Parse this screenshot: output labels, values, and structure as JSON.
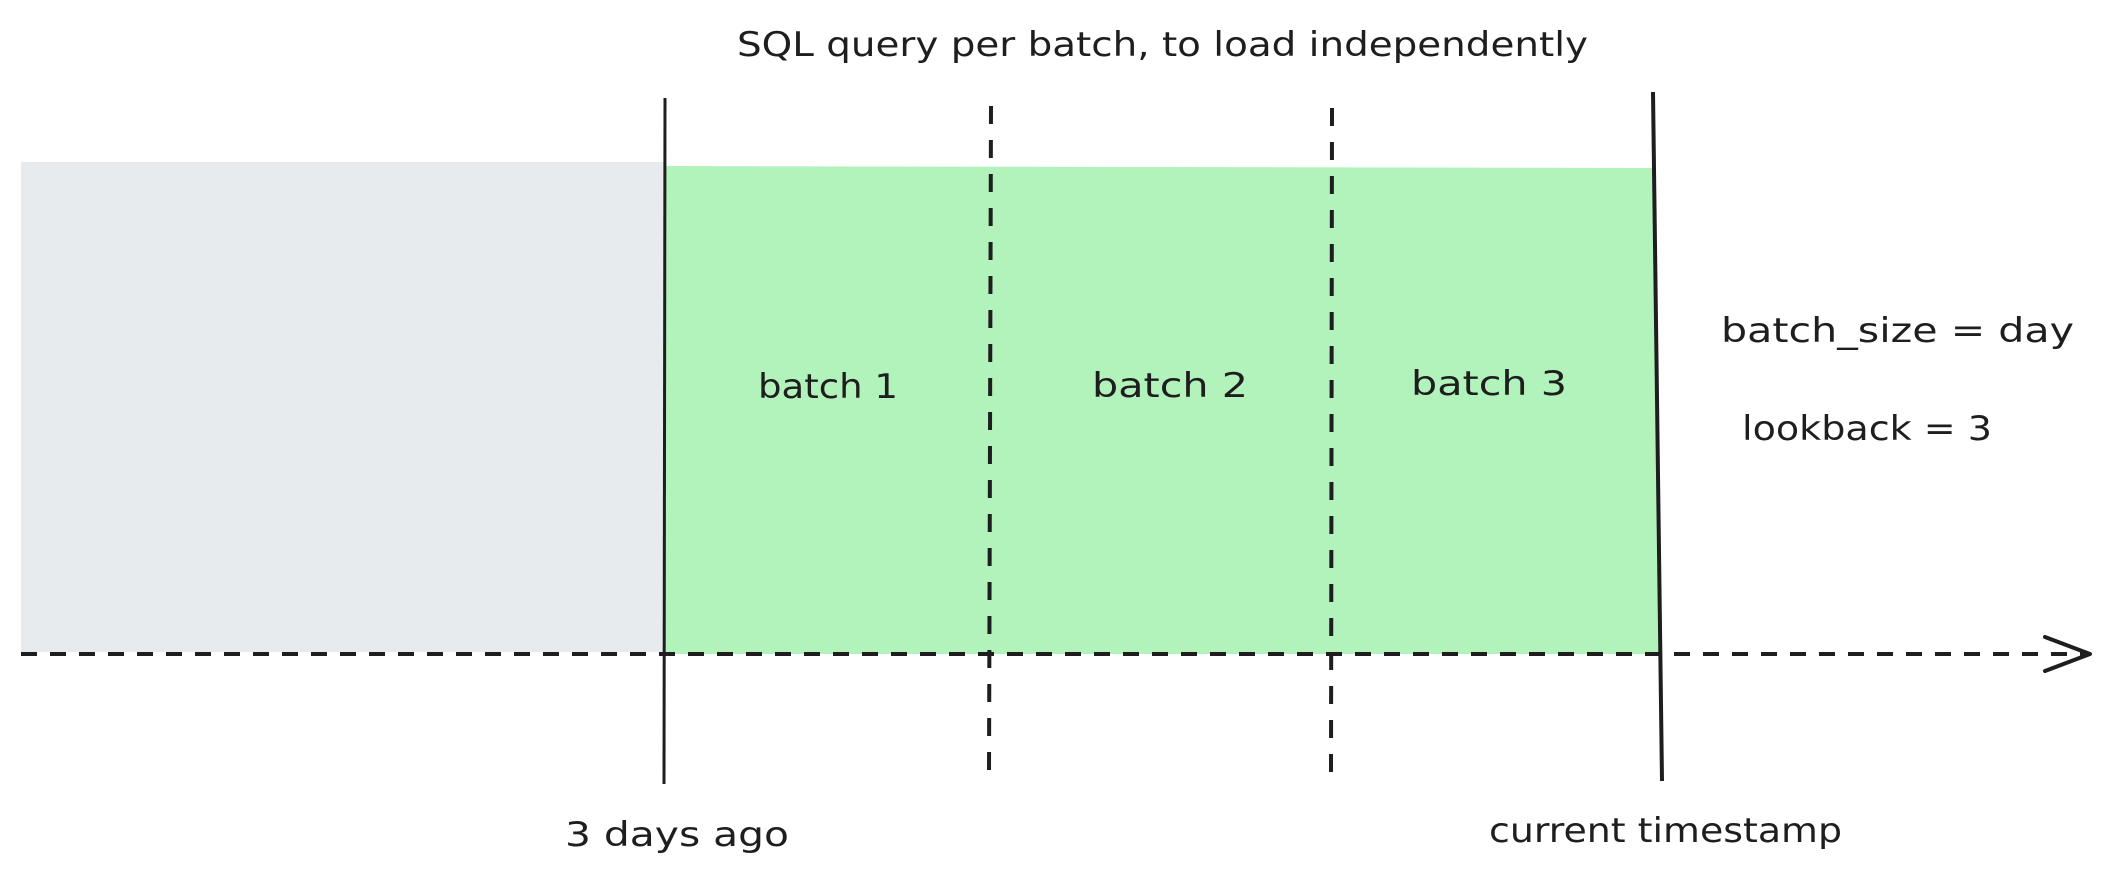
{
  "title": "SQL query per batch, to load independently",
  "batches": [
    "batch 1",
    "batch 2",
    "batch 3"
  ],
  "params": {
    "batch_size": "batch_size = day",
    "lookback": "lookback = 3"
  },
  "markers": {
    "start": "3 days ago",
    "end": "current timestamp"
  },
  "colors": {
    "past_region": "#e7ebee",
    "batch_region": "#b2f2bb",
    "stroke": "#1e1e1e"
  }
}
